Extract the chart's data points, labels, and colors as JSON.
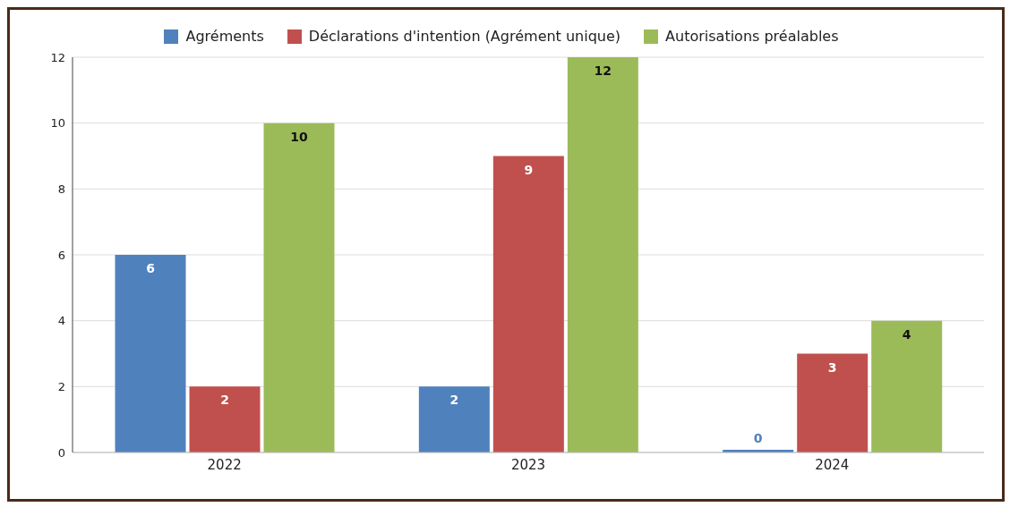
{
  "chart_data": {
    "type": "bar",
    "categories": [
      "2022",
      "2023",
      "2024"
    ],
    "series": [
      {
        "name": "Agréments",
        "color": "#4f81bd",
        "values": [
          6,
          2,
          0
        ]
      },
      {
        "name": "Déclarations d'intention (Agrément unique)",
        "color": "#c0504d",
        "values": [
          2,
          9,
          3
        ]
      },
      {
        "name": "Autorisations préalables",
        "color": "#9bbb59",
        "values": [
          10,
          12,
          4
        ]
      }
    ],
    "ylim": [
      0,
      12
    ],
    "yticks": [
      0,
      2,
      4,
      6,
      8,
      10,
      12
    ],
    "grid": "y",
    "legend": "top",
    "data_labels": true
  }
}
